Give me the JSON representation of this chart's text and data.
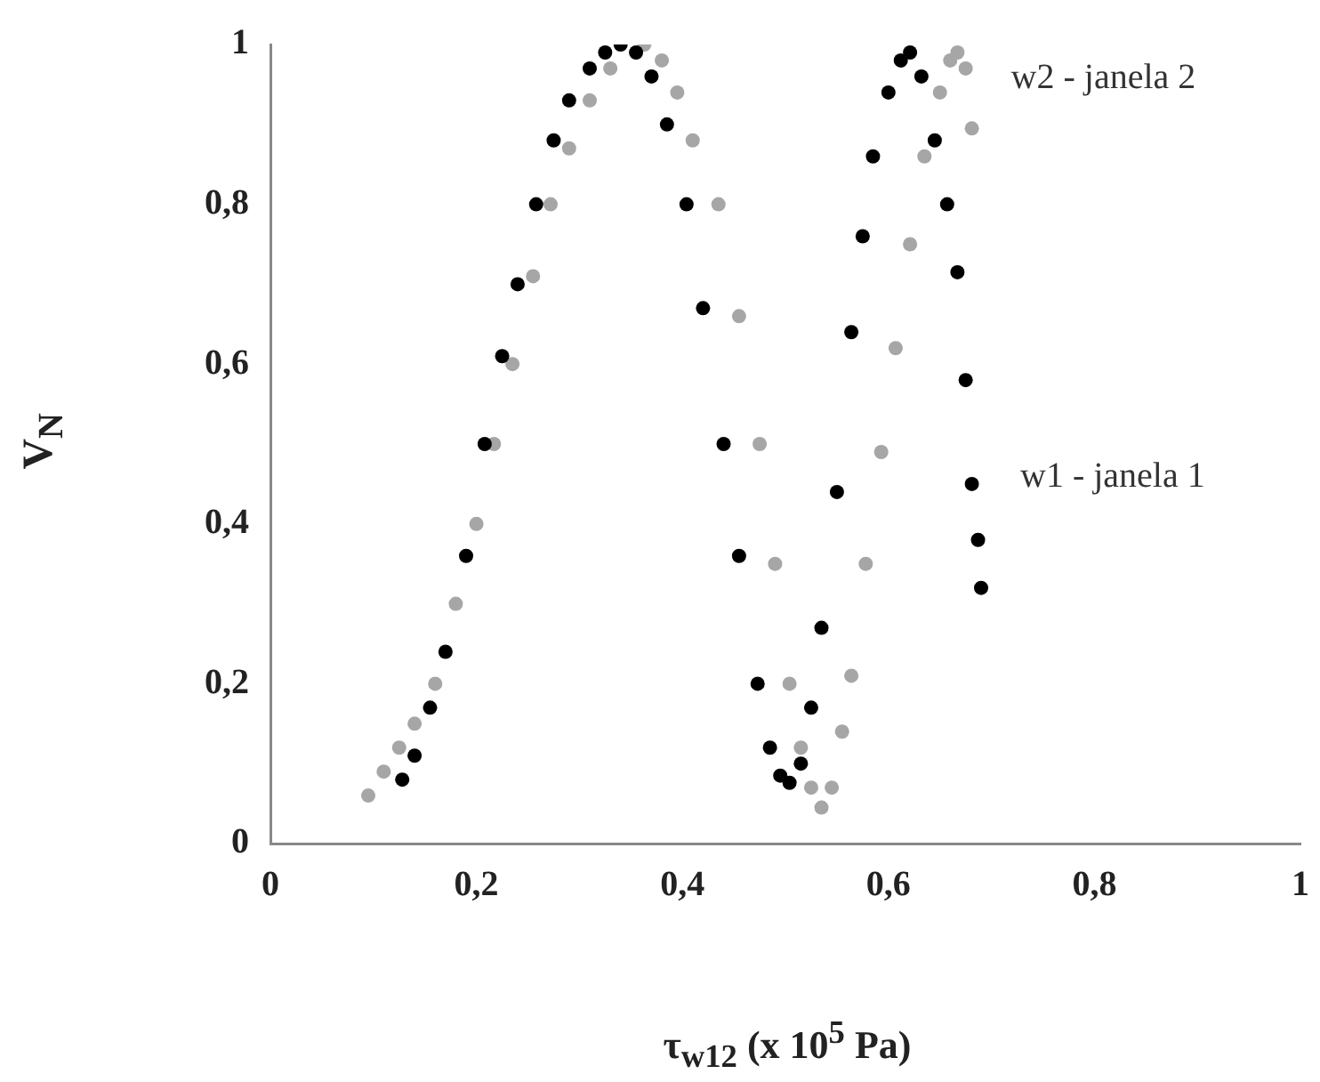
{
  "chart_data": {
    "type": "scatter",
    "xlabel": "τ$_{w12}$ (x 10$^{5}$ Pa)",
    "ylabel": "V$_{N}$",
    "xlim": [
      0,
      1
    ],
    "ylim": [
      0,
      1
    ],
    "xticks": [
      0,
      {
        "value": 0.2,
        "label": "0,2"
      },
      {
        "value": 0.4,
        "label": "0,4"
      },
      {
        "value": 0.6,
        "label": "0,6"
      },
      {
        "value": 0.8,
        "label": "0,8"
      },
      1
    ],
    "yticks": [
      0,
      {
        "value": 0.2,
        "label": "0,2"
      },
      {
        "value": 0.4,
        "label": "0,4"
      },
      {
        "value": 0.6,
        "label": "0,6"
      },
      {
        "value": 0.8,
        "label": "0,8"
      },
      1
    ],
    "grid": false,
    "legend": false,
    "marker": "circle",
    "series": [
      {
        "name": "w1 - janela 1",
        "color": "#000000",
        "x": [
          0.128,
          0.14,
          0.155,
          0.17,
          0.19,
          0.208,
          0.225,
          0.24,
          0.258,
          0.275,
          0.29,
          0.31,
          0.325,
          0.34,
          0.355,
          0.37,
          0.385,
          0.404,
          0.42,
          0.44,
          0.455,
          0.473,
          0.485,
          0.495,
          0.504,
          0.515,
          0.525,
          0.535,
          0.55,
          0.564,
          0.575,
          0.585,
          0.6,
          0.612,
          0.621,
          0.632,
          0.645,
          0.657,
          0.667,
          0.675,
          0.681,
          0.687,
          0.69
        ],
        "values": [
          0.08,
          0.11,
          0.17,
          0.24,
          0.36,
          0.5,
          0.61,
          0.7,
          0.8,
          0.88,
          0.93,
          0.97,
          0.99,
          1.0,
          0.99,
          0.96,
          0.9,
          0.8,
          0.67,
          0.5,
          0.36,
          0.2,
          0.12,
          0.085,
          0.076,
          0.1,
          0.17,
          0.27,
          0.44,
          0.64,
          0.76,
          0.86,
          0.94,
          0.98,
          0.99,
          0.96,
          0.88,
          0.8,
          0.715,
          0.58,
          0.45,
          0.38,
          0.32
        ]
      },
      {
        "name": "w2 - janela 2",
        "color": "#a6a6a6",
        "x": [
          0.095,
          0.11,
          0.125,
          0.14,
          0.16,
          0.18,
          0.2,
          0.217,
          0.235,
          0.255,
          0.272,
          0.29,
          0.31,
          0.33,
          0.363,
          0.38,
          0.395,
          0.41,
          0.435,
          0.455,
          0.475,
          0.49,
          0.504,
          0.515,
          0.525,
          0.535,
          0.545,
          0.555,
          0.564,
          0.578,
          0.593,
          0.607,
          0.621,
          0.635,
          0.65,
          0.66,
          0.667,
          0.675,
          0.681
        ],
        "values": [
          0.06,
          0.09,
          0.12,
          0.15,
          0.2,
          0.3,
          0.4,
          0.5,
          0.6,
          0.71,
          0.8,
          0.87,
          0.93,
          0.97,
          1.0,
          0.98,
          0.94,
          0.88,
          0.8,
          0.66,
          0.5,
          0.35,
          0.2,
          0.12,
          0.07,
          0.045,
          0.07,
          0.14,
          0.21,
          0.35,
          0.49,
          0.62,
          0.75,
          0.86,
          0.94,
          0.98,
          0.99,
          0.97,
          0.895
        ]
      }
    ]
  }
}
